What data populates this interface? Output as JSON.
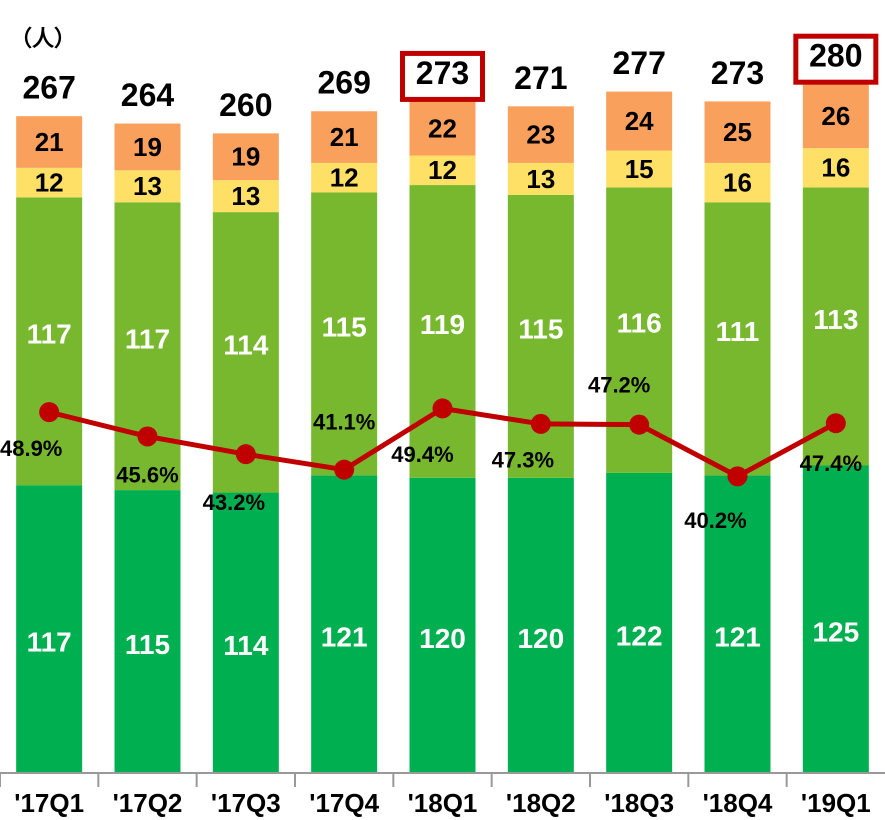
{
  "chart_data": {
    "type": "bar",
    "unit_label": "（人）",
    "categories": [
      "'17Q1",
      "'17Q2",
      "'17Q3",
      "'17Q4",
      "'18Q1",
      "'18Q2",
      "'18Q3",
      "'18Q4",
      "'19Q1"
    ],
    "stacked": true,
    "series": [
      {
        "color": "#00b050",
        "values": [
          117,
          115,
          114,
          121,
          120,
          120,
          122,
          121,
          125
        ]
      },
      {
        "color": "#77b82f",
        "values": [
          117,
          117,
          114,
          115,
          119,
          115,
          116,
          111,
          113
        ]
      },
      {
        "color": "#ffe066",
        "values": [
          12,
          13,
          13,
          12,
          12,
          13,
          15,
          16,
          16
        ]
      },
      {
        "color": "#f9a15c",
        "values": [
          21,
          19,
          19,
          21,
          22,
          23,
          24,
          25,
          26
        ]
      },
      {
        "type": "line",
        "axis": "y2",
        "color": "#c00000",
        "values": [
          48.9,
          45.6,
          43.2,
          41.1,
          49.4,
          47.3,
          47.2,
          40.2,
          47.4
        ],
        "value_labels": [
          "48.9%",
          "45.6%",
          "43.2%",
          "41.1%",
          "49.4%",
          "47.3%",
          "47.2%",
          "40.2%",
          "47.4%"
        ]
      }
    ],
    "totals": [
      267,
      264,
      260,
      269,
      273,
      271,
      277,
      273,
      280
    ],
    "highlight": [
      4,
      8
    ],
    "highlight_color": "#c00000",
    "ylim": [
      0,
      300
    ],
    "y2lim": [
      0,
      100
    ]
  }
}
